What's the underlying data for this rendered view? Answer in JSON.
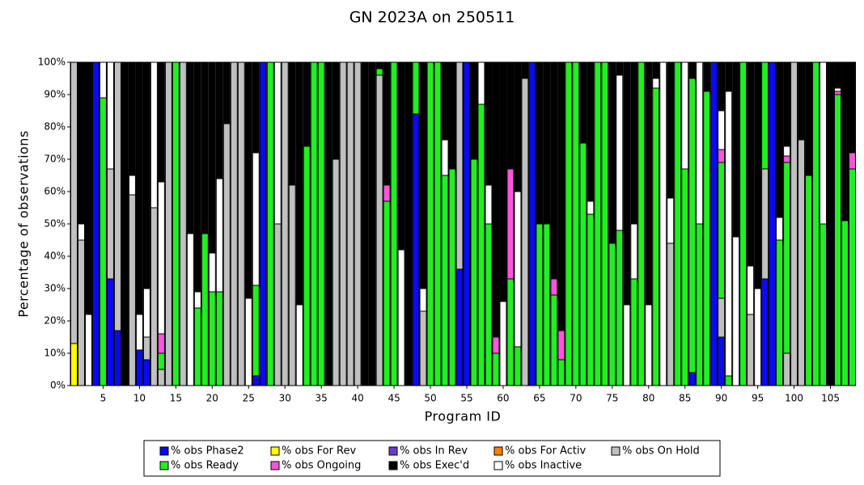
{
  "chart_data": {
    "type": "stacked-bar",
    "title": "GN 2023A on 250511",
    "x_label": "Program ID",
    "y_label": "Percentage of observations",
    "categories": [
      null,
      null,
      null,
      null,
      "5",
      null,
      null,
      null,
      null,
      "10",
      null,
      null,
      null,
      null,
      "15",
      null,
      null,
      null,
      null,
      "20",
      null,
      null,
      null,
      null,
      "25",
      null,
      null,
      null,
      null,
      "30",
      null,
      null,
      null,
      null,
      "35",
      null,
      null,
      null,
      null,
      "40",
      null,
      null,
      null,
      null,
      "45",
      null,
      null,
      null,
      null,
      "50",
      null,
      null,
      null,
      null,
      "55",
      null,
      null,
      null,
      null,
      "60",
      null,
      null,
      null,
      null,
      "65",
      null,
      null,
      null,
      null,
      "70",
      null,
      null,
      null,
      null,
      "75",
      null,
      null,
      null,
      null,
      "80",
      null,
      null,
      null,
      null,
      "85",
      null,
      null,
      null,
      null,
      "90",
      null,
      null,
      null,
      null,
      "95",
      null,
      null,
      null,
      null,
      "100",
      null,
      null,
      null,
      null,
      "105",
      null,
      null,
      null
    ],
    "ylim": [
      0,
      100
    ],
    "yticks": [
      {
        "value": 0,
        "label": "0%"
      },
      {
        "value": 10,
        "label": "10%"
      },
      {
        "value": 20,
        "label": "20%"
      },
      {
        "value": 30,
        "label": "30%"
      },
      {
        "value": 40,
        "label": "40%"
      },
      {
        "value": 50,
        "label": "50%"
      },
      {
        "value": 60,
        "label": "60%"
      },
      {
        "value": 70,
        "label": "70%"
      },
      {
        "value": 80,
        "label": "80%"
      },
      {
        "value": 90,
        "label": "90%"
      },
      {
        "value": 100,
        "label": "100%"
      }
    ],
    "series": [
      {
        "name": "% obs Phase2",
        "color": "#0a0aee",
        "values": [
          0,
          0,
          0,
          100,
          0,
          33,
          17,
          0,
          0,
          11,
          8,
          0,
          0,
          0,
          0,
          0,
          0,
          0,
          0,
          0,
          0,
          0,
          0,
          0,
          0,
          3,
          100,
          0,
          0,
          0,
          0,
          0,
          0,
          0,
          0,
          0,
          0,
          0,
          0,
          0,
          0,
          0,
          0,
          0,
          0,
          0,
          0,
          84,
          0,
          0,
          0,
          0,
          0,
          36,
          100,
          0,
          0,
          0,
          0,
          0,
          0,
          0,
          0,
          100,
          0,
          0,
          0,
          0,
          0,
          0,
          0,
          0,
          0,
          0,
          0,
          0,
          0,
          0,
          0,
          0,
          0,
          0,
          0,
          0,
          0,
          4,
          0,
          0,
          100,
          15,
          0,
          0,
          0,
          0,
          0,
          33,
          100,
          0,
          0,
          0,
          0,
          0,
          0,
          0,
          0,
          0,
          0,
          0
        ]
      },
      {
        "name": "% obs For Rev",
        "color": "#ffff00",
        "values": [
          13,
          0,
          0,
          0,
          0,
          0,
          0,
          0,
          0,
          0,
          0,
          0,
          0,
          0,
          0,
          0,
          0,
          0,
          0,
          0,
          0,
          0,
          0,
          0,
          0,
          0,
          0,
          0,
          0,
          0,
          0,
          0,
          0,
          0,
          0,
          0,
          0,
          0,
          0,
          0,
          0,
          0,
          0,
          0,
          0,
          0,
          0,
          0,
          0,
          0,
          0,
          0,
          0,
          0,
          0,
          0,
          0,
          0,
          0,
          0,
          0,
          0,
          0,
          0,
          0,
          0,
          0,
          0,
          0,
          0,
          0,
          0,
          0,
          0,
          0,
          0,
          0,
          0,
          0,
          0,
          0,
          0,
          0,
          0,
          0,
          0,
          0,
          0,
          0,
          0,
          0,
          0,
          0,
          0,
          0,
          0,
          0,
          0,
          0,
          0,
          0,
          0,
          0,
          0,
          0,
          0,
          0,
          0
        ]
      },
      {
        "name": "% obs In Rev",
        "color": "#6a3cd0",
        "values": [
          0,
          0,
          0,
          0,
          0,
          0,
          0,
          0,
          0,
          0,
          0,
          0,
          0,
          0,
          0,
          0,
          0,
          0,
          0,
          0,
          0,
          0,
          0,
          0,
          0,
          0,
          0,
          0,
          0,
          0,
          0,
          0,
          0,
          0,
          0,
          0,
          0,
          0,
          0,
          0,
          0,
          0,
          0,
          0,
          0,
          0,
          0,
          0,
          0,
          0,
          0,
          0,
          0,
          0,
          0,
          0,
          0,
          0,
          0,
          0,
          0,
          0,
          0,
          0,
          0,
          0,
          0,
          0,
          0,
          0,
          0,
          0,
          0,
          0,
          0,
          0,
          0,
          0,
          0,
          0,
          0,
          0,
          0,
          0,
          0,
          0,
          0,
          0,
          0,
          0,
          0,
          0,
          0,
          0,
          0,
          0,
          0,
          0,
          0,
          0,
          0,
          0,
          0,
          0,
          0,
          0,
          0,
          0
        ]
      },
      {
        "name": "% obs For Activ",
        "color": "#ff7f00",
        "values": [
          0,
          0,
          0,
          0,
          0,
          0,
          0,
          0,
          0,
          0,
          0,
          0,
          0,
          0,
          0,
          0,
          0,
          0,
          0,
          0,
          0,
          0,
          0,
          0,
          0,
          0,
          0,
          0,
          0,
          0,
          0,
          0,
          0,
          0,
          0,
          0,
          0,
          0,
          0,
          0,
          0,
          0,
          0,
          0,
          0,
          0,
          0,
          0,
          0,
          0,
          0,
          0,
          0,
          0,
          0,
          0,
          0,
          0,
          0,
          0,
          0,
          0,
          0,
          0,
          0,
          0,
          0,
          0,
          0,
          0,
          0,
          0,
          0,
          0,
          0,
          0,
          0,
          0,
          0,
          0,
          0,
          0,
          0,
          0,
          0,
          0,
          0,
          0,
          0,
          0,
          0,
          0,
          0,
          0,
          0,
          0,
          0,
          0,
          0,
          0,
          0,
          0,
          0,
          0,
          0,
          0,
          0,
          0
        ]
      },
      {
        "name": "% obs On Hold",
        "color": "#c0c0c0",
        "values": [
          87,
          45,
          0,
          0,
          0,
          34,
          83,
          0,
          59,
          0,
          7,
          55,
          5,
          100,
          0,
          100,
          0,
          0,
          0,
          0,
          0,
          81,
          100,
          100,
          0,
          0,
          0,
          0,
          50,
          100,
          62,
          0,
          0,
          0,
          0,
          0,
          70,
          100,
          100,
          100,
          0,
          0,
          96,
          0,
          0,
          0,
          0,
          0,
          23,
          0,
          0,
          0,
          0,
          64,
          0,
          0,
          0,
          0,
          0,
          0,
          0,
          0,
          95,
          0,
          0,
          0,
          0,
          0,
          0,
          0,
          0,
          0,
          0,
          0,
          0,
          0,
          0,
          0,
          0,
          0,
          0,
          0,
          44,
          0,
          0,
          0,
          0,
          0,
          0,
          12,
          0,
          0,
          0,
          22,
          0,
          34,
          0,
          0,
          10,
          100,
          76,
          0,
          0,
          0,
          0,
          0,
          0,
          0
        ]
      },
      {
        "name": "% obs Ready",
        "color": "#22ee22",
        "values": [
          0,
          0,
          0,
          0,
          89,
          0,
          0,
          0,
          0,
          0,
          0,
          0,
          5,
          0,
          100,
          0,
          0,
          24,
          47,
          29,
          29,
          0,
          0,
          0,
          0,
          28,
          0,
          100,
          0,
          0,
          0,
          0,
          74,
          100,
          100,
          0,
          0,
          0,
          0,
          0,
          0,
          0,
          2,
          57,
          100,
          0,
          0,
          16,
          0,
          100,
          100,
          65,
          67,
          0,
          0,
          70,
          87,
          50,
          10,
          0,
          33,
          12,
          0,
          0,
          50,
          50,
          28,
          8,
          100,
          100,
          75,
          53,
          100,
          100,
          44,
          48,
          0,
          33,
          100,
          0,
          92,
          0,
          0,
          100,
          67,
          91,
          50,
          91,
          0,
          42,
          3,
          0,
          100,
          0,
          0,
          33,
          0,
          45,
          59,
          0,
          0,
          65,
          100,
          50,
          0,
          90,
          51,
          67
        ]
      },
      {
        "name": "% obs Ongoing",
        "color": "#ff55dd",
        "values": [
          0,
          0,
          0,
          0,
          0,
          0,
          0,
          0,
          0,
          0,
          0,
          0,
          6,
          0,
          0,
          0,
          0,
          0,
          0,
          0,
          0,
          0,
          0,
          0,
          0,
          0,
          0,
          0,
          0,
          0,
          0,
          0,
          0,
          0,
          0,
          0,
          0,
          0,
          0,
          0,
          0,
          0,
          0,
          5,
          0,
          0,
          0,
          0,
          0,
          0,
          0,
          0,
          0,
          0,
          0,
          0,
          0,
          0,
          5,
          0,
          34,
          0,
          0,
          0,
          0,
          0,
          5,
          9,
          0,
          0,
          0,
          0,
          0,
          0,
          0,
          0,
          0,
          0,
          0,
          0,
          0,
          0,
          0,
          0,
          0,
          0,
          0,
          0,
          0,
          4,
          0,
          0,
          0,
          0,
          0,
          0,
          0,
          0,
          2,
          0,
          0,
          0,
          0,
          0,
          0,
          1,
          0,
          5
        ]
      },
      {
        "name": "% obs Exec'd",
        "color": "#000000",
        "values": [
          0,
          50,
          78,
          0,
          0,
          0,
          0,
          100,
          35,
          78,
          70,
          0,
          37,
          0,
          0,
          0,
          53,
          71,
          53,
          59,
          36,
          19,
          0,
          0,
          73,
          28,
          0,
          0,
          0,
          0,
          38,
          75,
          26,
          0,
          0,
          100,
          30,
          0,
          0,
          0,
          100,
          100,
          2,
          38,
          0,
          58,
          100,
          0,
          70,
          0,
          0,
          24,
          33,
          0,
          0,
          30,
          0,
          38,
          85,
          74,
          33,
          40,
          5,
          0,
          50,
          50,
          67,
          83,
          0,
          0,
          25,
          43,
          0,
          0,
          56,
          4,
          75,
          50,
          0,
          75,
          5,
          0,
          42,
          0,
          0,
          5,
          0,
          9,
          0,
          15,
          9,
          54,
          0,
          63,
          70,
          0,
          0,
          48,
          26,
          0,
          24,
          35,
          0,
          0,
          100,
          8,
          49,
          28
        ]
      },
      {
        "name": "% obs Inactive",
        "color": "#ffffff",
        "values": [
          0,
          5,
          22,
          0,
          11,
          33,
          0,
          0,
          6,
          11,
          15,
          45,
          47,
          0,
          0,
          0,
          47,
          5,
          0,
          12,
          35,
          0,
          0,
          0,
          27,
          41,
          0,
          0,
          50,
          0,
          0,
          25,
          0,
          0,
          0,
          0,
          0,
          0,
          0,
          0,
          0,
          0,
          0,
          0,
          0,
          42,
          0,
          0,
          7,
          0,
          0,
          11,
          0,
          0,
          0,
          0,
          13,
          12,
          0,
          26,
          0,
          48,
          0,
          0,
          0,
          0,
          0,
          0,
          0,
          0,
          0,
          4,
          0,
          0,
          0,
          48,
          25,
          17,
          0,
          25,
          3,
          100,
          14,
          0,
          33,
          0,
          50,
          0,
          0,
          12,
          88,
          46,
          0,
          15,
          30,
          0,
          0,
          7,
          3,
          0,
          0,
          0,
          0,
          50,
          0,
          1,
          0,
          0
        ]
      }
    ]
  }
}
